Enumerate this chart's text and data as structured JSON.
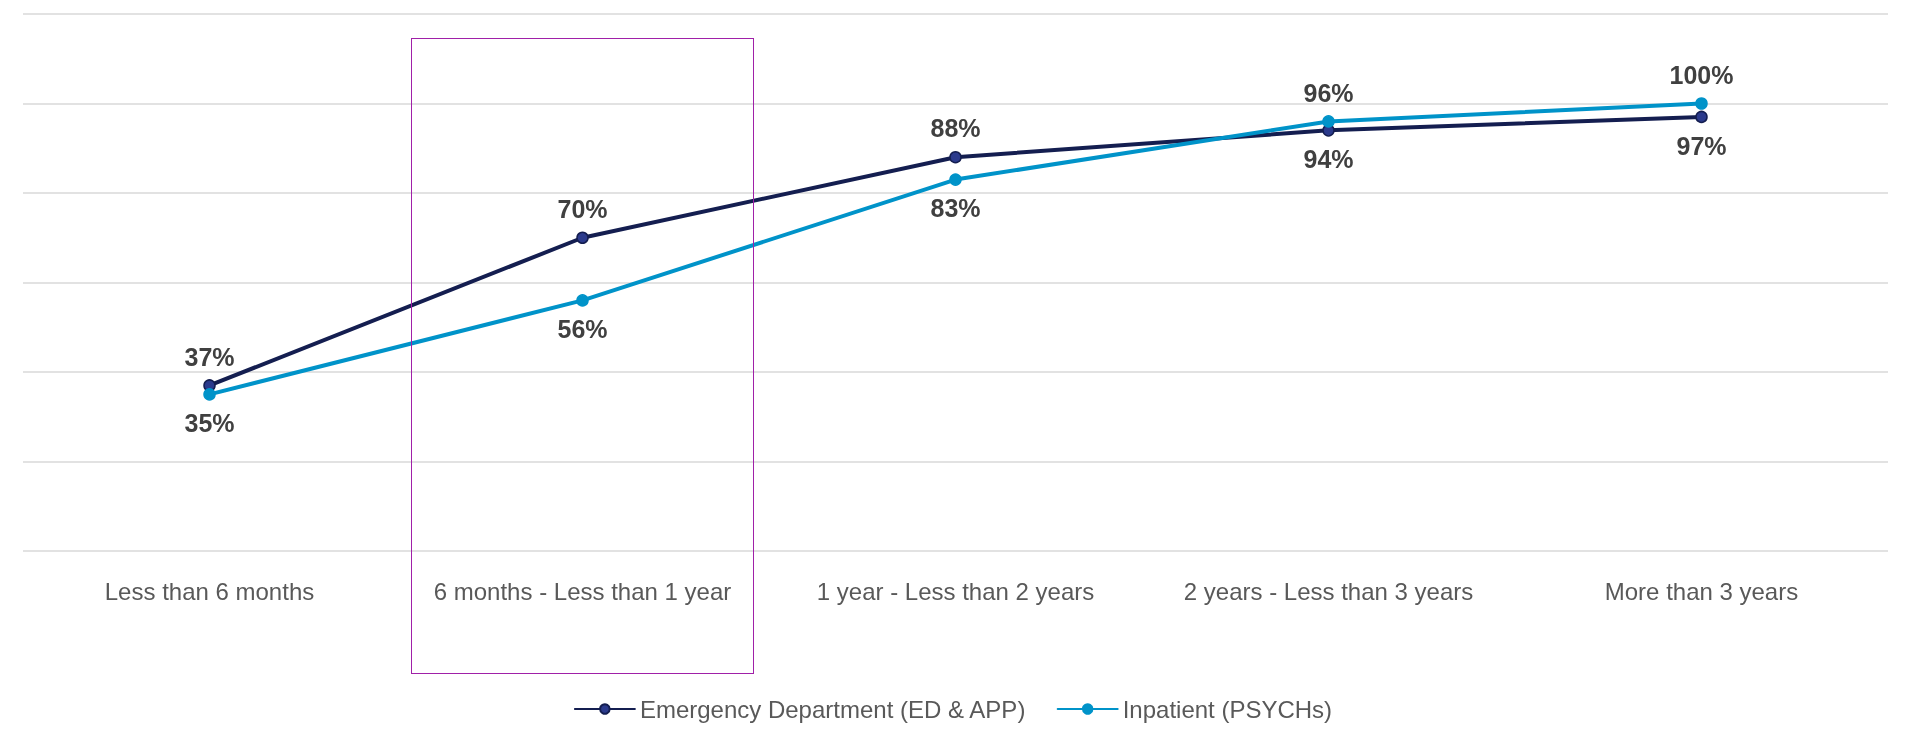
{
  "chart_data": {
    "type": "line",
    "categories": [
      "Less than 6 months",
      "6 months - Less than 1 year",
      "1 year - Less than 2 years",
      "2 years - Less than 3 years",
      "More than 3 years"
    ],
    "series": [
      {
        "name": "Emergency Department (ED & APP)",
        "color": "#141e50",
        "values": [
          37,
          70,
          88,
          94,
          97
        ],
        "value_labels": [
          "37%",
          "70%",
          "88%",
          "94%",
          "97%"
        ]
      },
      {
        "name": "Inpatient (PSYCHs)",
        "color": "#0093c9",
        "values": [
          35,
          56,
          83,
          96,
          100
        ],
        "value_labels": [
          "35%",
          "56%",
          "83%",
          "96%",
          "100%"
        ]
      }
    ],
    "tick_labels": "x",
    "grid": "y",
    "legend": "bottom",
    "marker": "circle",
    "line_style": "solid"
  }
}
